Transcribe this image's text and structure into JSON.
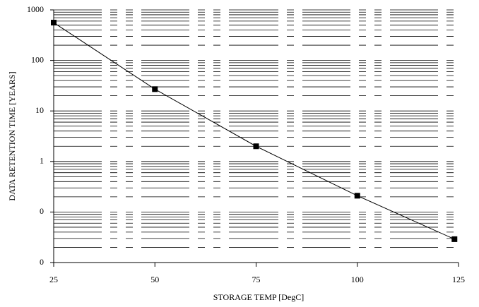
{
  "chart_data": {
    "type": "line",
    "x_label": "STORAGE TEMP [DegC]",
    "y_label": "DATA RETENTION TIME [YEARS]",
    "x": [
      25,
      50,
      75,
      100,
      124
    ],
    "series": [
      {
        "values": [
          560,
          27,
          2,
          0.21,
          0.029
        ],
        "color": "#000000"
      }
    ],
    "xlim": [
      25,
      125
    ],
    "xticks": [
      25,
      50,
      75,
      100,
      125
    ],
    "ylim": [
      0.01,
      1000
    ],
    "ylog": true,
    "yticks": [
      1000,
      100,
      10,
      1,
      {
        "value": 0.1,
        "label": "0"
      },
      {
        "value": 0.01,
        "label": "0"
      }
    ],
    "grid": true
  }
}
